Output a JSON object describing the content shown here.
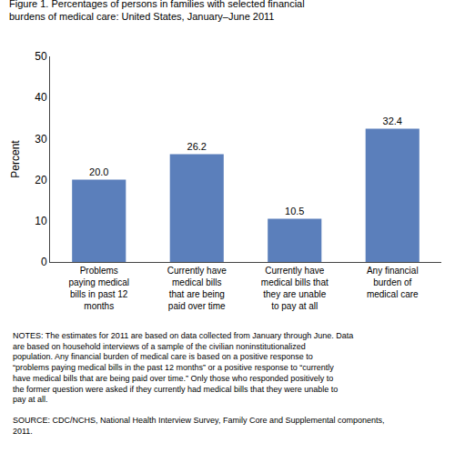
{
  "chart_data": {
    "type": "bar",
    "title": "Figure 1. Percentages of persons in families with selected financial burdens of medical care: United States, January–June 2011",
    "categories": [
      "Problems\npaying medical\nbills in past 12\nmonths",
      "Currently have\nmedical bills\nthat are being\npaid over time",
      "Currently have\nmedical bills that\nthey are unable\nto pay at all",
      "Any financial\nburden of\nmedical care"
    ],
    "values": [
      20.0,
      26.2,
      10.5,
      32.4
    ],
    "value_labels": [
      "20.0",
      "26.2",
      "10.5",
      "32.4"
    ],
    "data_labels": true,
    "color": "#5b7fbb",
    "ylabel": "Percent",
    "ylim": [
      0,
      50
    ],
    "yticks": [
      0,
      10,
      20,
      30,
      40,
      50
    ],
    "grid": false,
    "annotations": [
      "NOTES: The estimates for 2011 are based on data collected from January through June. Data are based on\nhousehold interviews of a sample of the civilian noninstitutionalized population.  Any financial burden of\nmedical care is based on a positive response to “problems paying medical bills in the past 12 months” or a\npositive response to “currently have medical bills that are being paid over time.”  Only those who responded\npositively to the former question were asked if they currently had medical bills that they were unable to pay\nat all.",
      "SOURCE: CDC/NCHS, National Health Interview Survey, Family Core and Supplemental components,\n2011."
    ]
  }
}
